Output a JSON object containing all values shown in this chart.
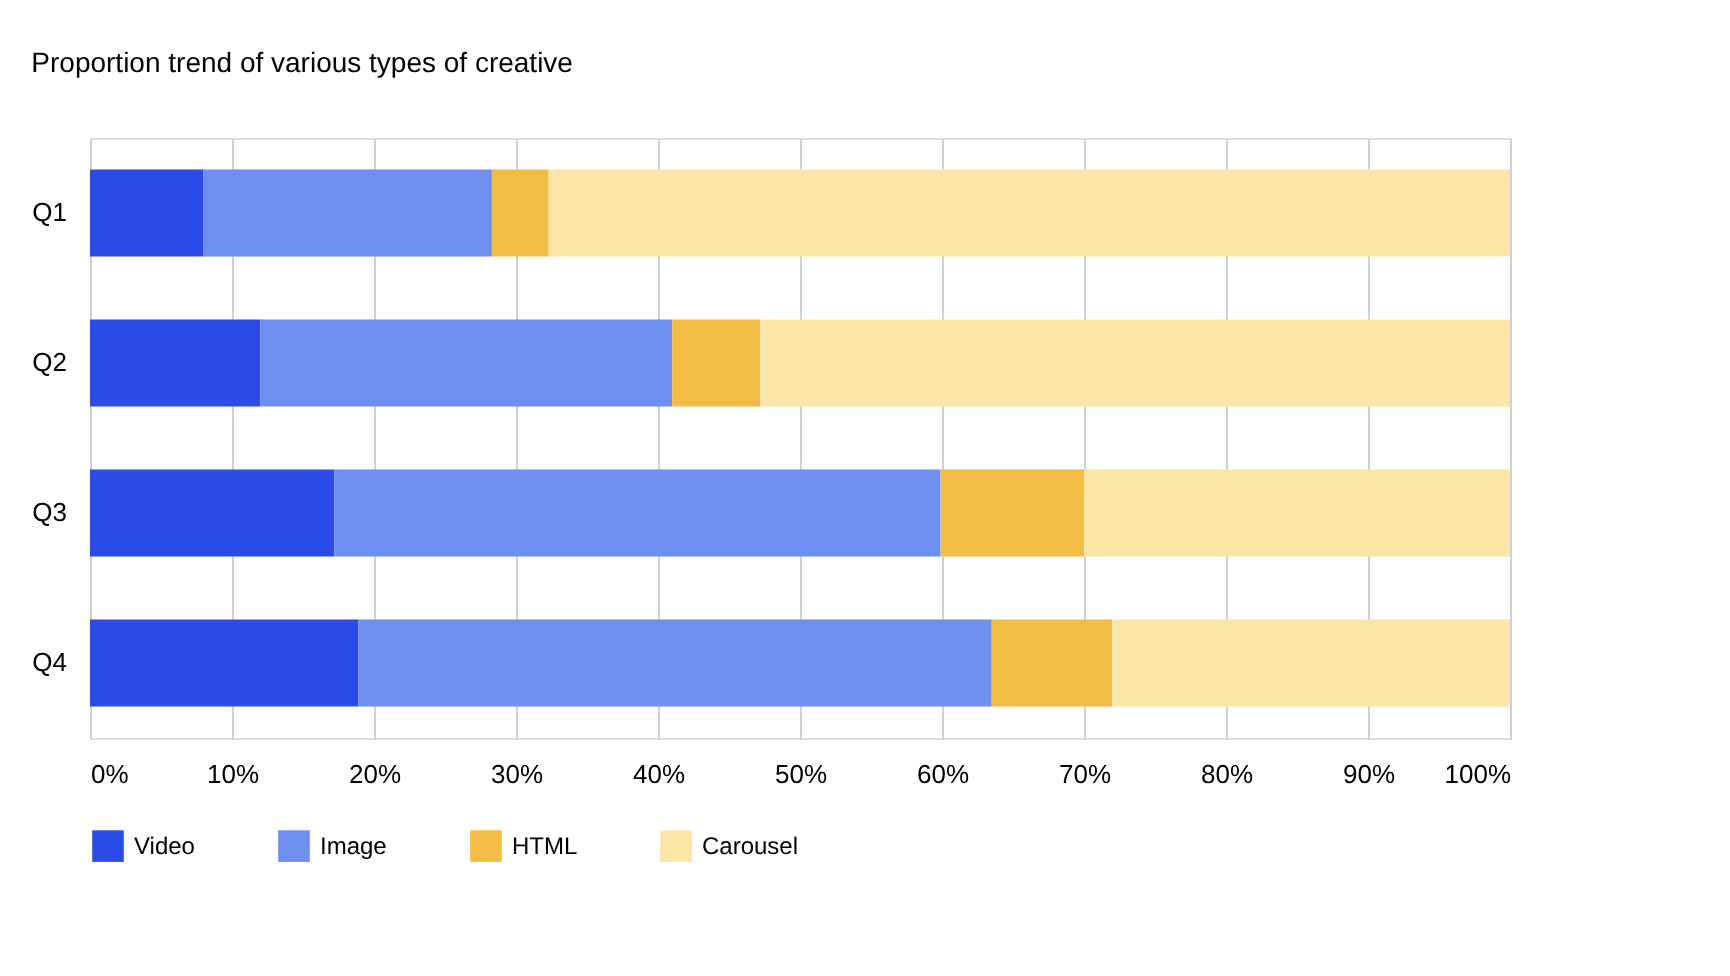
{
  "chart_data": {
    "type": "bar",
    "orientation": "horizontal",
    "stacked": true,
    "title": "Proportion trend of various types of creative",
    "categories": [
      "Q1",
      "Q2",
      "Q3",
      "Q4"
    ],
    "series": [
      {
        "name": "Video",
        "color": "#2b4ce6",
        "values": [
          8.0,
          12.0,
          17.2,
          18.9
        ]
      },
      {
        "name": "Image",
        "color": "#6e8ff0",
        "values": [
          20.3,
          29.0,
          42.7,
          44.6
        ]
      },
      {
        "name": "HTML",
        "color": "#f3bd45",
        "values": [
          4.0,
          6.2,
          10.1,
          8.5
        ]
      },
      {
        "name": "Carousel",
        "color": "#fbe6a8",
        "values": [
          67.7,
          52.8,
          30.0,
          28.0
        ]
      }
    ],
    "xlim": [
      0,
      100
    ],
    "xticks": [
      {
        "value": 0,
        "label": "0%"
      },
      {
        "value": 10,
        "label": "10%"
      },
      {
        "value": 20,
        "label": "20%"
      },
      {
        "value": 30,
        "label": "30%"
      },
      {
        "value": 40,
        "label": "40%"
      },
      {
        "value": 50,
        "label": "50%"
      },
      {
        "value": 60,
        "label": "60%"
      },
      {
        "value": 70,
        "label": "70%"
      },
      {
        "value": 80,
        "label": "80%"
      },
      {
        "value": 90,
        "label": "90%"
      },
      {
        "value": 100,
        "label": "100%"
      }
    ],
    "grid": "x",
    "legend": "bottom"
  }
}
